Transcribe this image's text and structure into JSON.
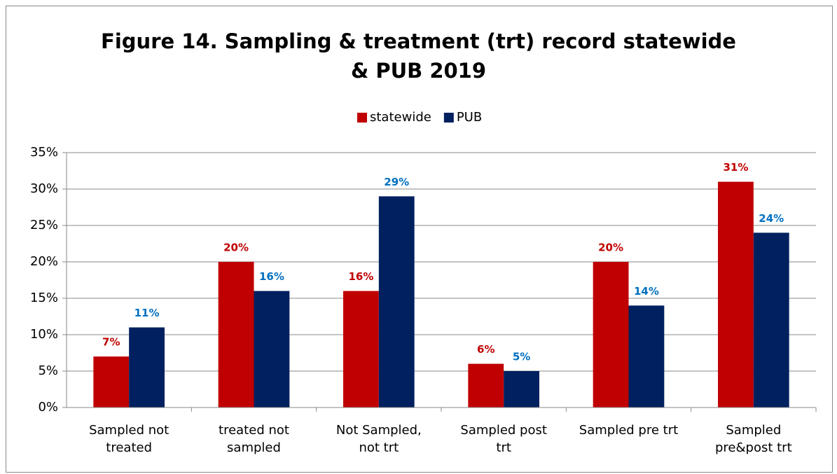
{
  "chart_data": {
    "type": "bar",
    "title": "Figure 14. Sampling & treatment (trt) record statewide\n& PUB 2019",
    "categories": [
      "Sampled not\ntreated",
      "treated not\nsampled",
      "Not Sampled,\nnot trt",
      "Sampled post\ntrt",
      "Sampled pre trt",
      "Sampled\npre&post trt"
    ],
    "series": [
      {
        "name": "statewide",
        "color": "#c00000",
        "label_color": "#c00000",
        "values": [
          7,
          20,
          16,
          6,
          20,
          31
        ],
        "value_labels": [
          "7%",
          "20%",
          "16%",
          "6%",
          "20%",
          "31%"
        ]
      },
      {
        "name": "PUB",
        "color": "#002060",
        "label_color": "#0070c0",
        "values": [
          11,
          16,
          29,
          5,
          14,
          24
        ],
        "value_labels": [
          "11%",
          "16%",
          "29%",
          "5%",
          "14%",
          "24%"
        ]
      }
    ],
    "ylim": [
      0,
      35
    ],
    "yticks": [
      {
        "value": 0,
        "label": "0%"
      },
      {
        "value": 5,
        "label": "5%"
      },
      {
        "value": 10,
        "label": "10%"
      },
      {
        "value": 15,
        "label": "15%"
      },
      {
        "value": 20,
        "label": "20%"
      },
      {
        "value": 25,
        "label": "25%"
      },
      {
        "value": 30,
        "label": "30%"
      },
      {
        "value": 35,
        "label": "35%"
      }
    ],
    "grid": true,
    "legend": "top"
  }
}
